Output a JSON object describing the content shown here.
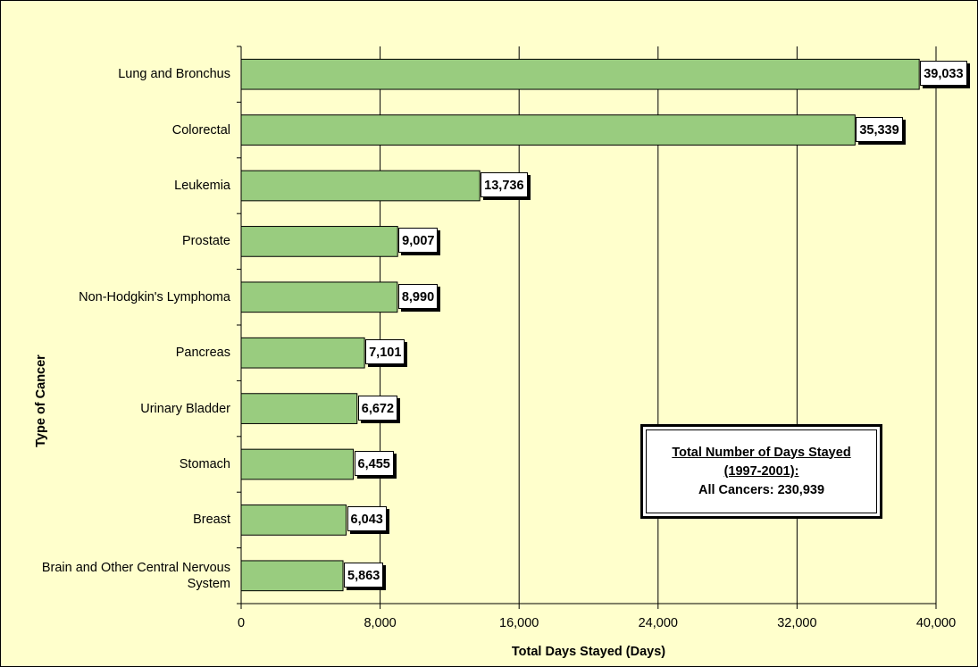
{
  "chart_data": {
    "type": "bar",
    "orientation": "horizontal",
    "categories": [
      "Lung and Bronchus",
      "Colorectal",
      "Leukemia",
      "Prostate",
      "Non-Hodgkin's Lymphoma",
      "Pancreas",
      "Urinary Bladder",
      "Stomach",
      "Breast",
      "Brain and Other Central Nervous System"
    ],
    "values": [
      39033,
      35339,
      13736,
      9007,
      8990,
      7101,
      6672,
      6455,
      6043,
      5863
    ],
    "value_labels": [
      "39,033",
      "35,339",
      "13,736",
      "9,007",
      "8,990",
      "7,101",
      "6,672",
      "6,455",
      "6,043",
      "5,863"
    ],
    "xlabel": "Total Days Stayed (Days)",
    "ylabel": "Type of Cancer",
    "xlim": [
      0,
      40000
    ],
    "xticks": [
      0,
      8000,
      16000,
      24000,
      32000,
      40000
    ],
    "xtick_labels": [
      "0",
      "8,000",
      "16,000",
      "24,000",
      "32,000",
      "40,000"
    ],
    "grid": "vertical",
    "bar_color": "#99cc7f",
    "background_color": "#ffffcc",
    "annotation": {
      "line1": "Total Number of Days Stayed",
      "line2": "(1997-2001):",
      "line3": "All Cancers: 230,939"
    }
  }
}
